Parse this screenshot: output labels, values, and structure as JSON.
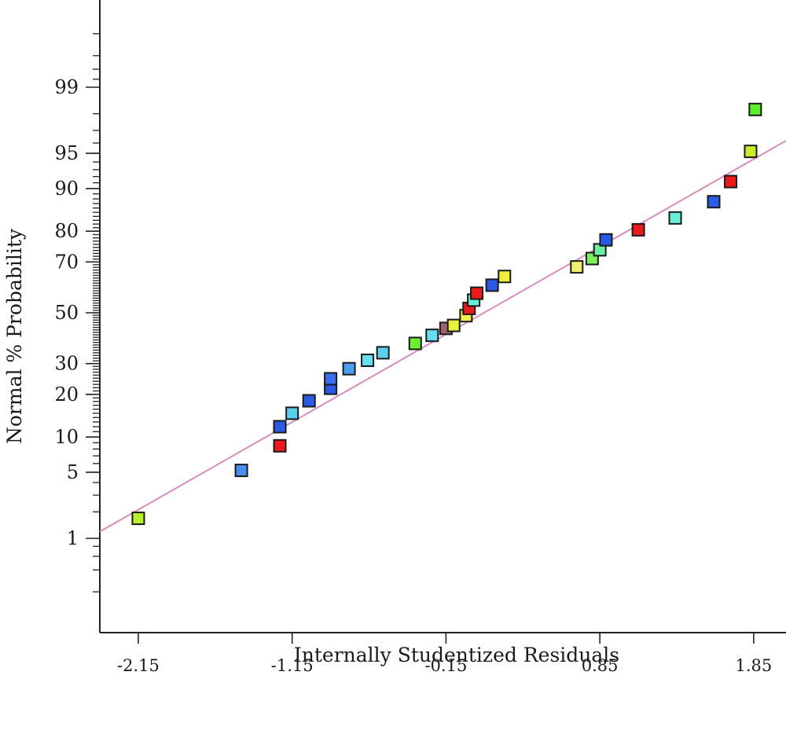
{
  "chart_data": {
    "type": "scatter",
    "title": "",
    "xlabel": "Internally Studentized Residuals",
    "ylabel": "Normal % Probability",
    "x_ticks": [
      -2.15,
      -1.15,
      -0.15,
      0.85,
      1.85
    ],
    "x_tick_labels": [
      "-2.15",
      "-1.15",
      "-0.15",
      "0.85",
      "1.85"
    ],
    "xlim": [
      -2.4,
      2.06
    ],
    "y_scale": "normal-probability",
    "y_ticks": [
      1,
      5,
      10,
      20,
      30,
      50,
      70,
      80,
      90,
      95,
      99
    ],
    "y_tick_labels": [
      "1",
      "5",
      "10",
      "20",
      "30",
      "50",
      "70",
      "80",
      "90",
      "95",
      "99"
    ],
    "ylim": [
      0.1,
      99.9
    ],
    "grid": false,
    "reference_line": {
      "color": "#d98cc0",
      "points": [
        [
          -2.4,
          1.2
        ],
        [
          2.06,
          96.2
        ]
      ]
    },
    "points": [
      {
        "x": -2.15,
        "y": 1.7,
        "color": "#b8f02a"
      },
      {
        "x": -1.48,
        "y": 5.2,
        "color": "#4a8cf0"
      },
      {
        "x": -1.23,
        "y": 8.5,
        "color": "#ee1a1a"
      },
      {
        "x": -1.23,
        "y": 12.0,
        "color": "#2a5ae8"
      },
      {
        "x": -1.15,
        "y": 15.0,
        "color": "#5ad0f0"
      },
      {
        "x": -1.04,
        "y": 18.2,
        "color": "#2a5ae8"
      },
      {
        "x": -0.9,
        "y": 21.8,
        "color": "#2a5ae8"
      },
      {
        "x": -0.9,
        "y": 24.8,
        "color": "#3a6ef0"
      },
      {
        "x": -0.78,
        "y": 28.2,
        "color": "#4aa0f0"
      },
      {
        "x": -0.66,
        "y": 31.2,
        "color": "#62e0f0"
      },
      {
        "x": -0.56,
        "y": 34.0,
        "color": "#5ad0f0"
      },
      {
        "x": -0.35,
        "y": 37.6,
        "color": "#6ef02a"
      },
      {
        "x": -0.24,
        "y": 40.8,
        "color": "#62e0f0"
      },
      {
        "x": -0.15,
        "y": 43.6,
        "color": "#a06070"
      },
      {
        "x": -0.1,
        "y": 44.8,
        "color": "#e8f03a"
      },
      {
        "x": -0.02,
        "y": 48.8,
        "color": "#f0f04a"
      },
      {
        "x": 0.0,
        "y": 51.8,
        "color": "#ee1a1a"
      },
      {
        "x": 0.03,
        "y": 55.2,
        "color": "#6af0d8"
      },
      {
        "x": 0.05,
        "y": 58.0,
        "color": "#ee1a1a"
      },
      {
        "x": 0.15,
        "y": 61.2,
        "color": "#2a5ae8"
      },
      {
        "x": 0.23,
        "y": 64.6,
        "color": "#f0f03a"
      },
      {
        "x": 0.7,
        "y": 68.2,
        "color": "#f0f06a"
      },
      {
        "x": 0.8,
        "y": 71.2,
        "color": "#7af05a"
      },
      {
        "x": 0.85,
        "y": 74.2,
        "color": "#6af0a0"
      },
      {
        "x": 0.89,
        "y": 77.4,
        "color": "#2a5ae8"
      },
      {
        "x": 1.1,
        "y": 80.4,
        "color": "#ee1a1a"
      },
      {
        "x": 1.34,
        "y": 83.6,
        "color": "#6af0d8"
      },
      {
        "x": 1.59,
        "y": 87.4,
        "color": "#2a5ae8"
      },
      {
        "x": 1.7,
        "y": 91.2,
        "color": "#ee1a1a"
      },
      {
        "x": 1.83,
        "y": 95.2,
        "color": "#c8f02a"
      },
      {
        "x": 1.86,
        "y": 98.2,
        "color": "#5af02a"
      }
    ]
  }
}
